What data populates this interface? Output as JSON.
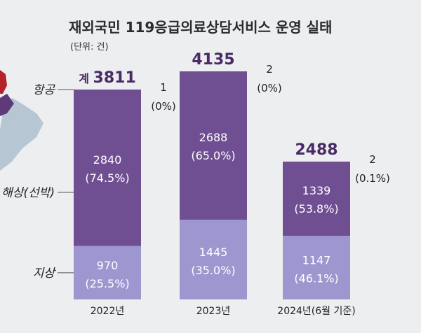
{
  "chart_data": {
    "type": "bar",
    "stacked": true,
    "title": "재외국민 119응급의료상담서비스 운영 실태",
    "subtitle": "(단위: 건)",
    "categories": [
      "2022년",
      "2023년",
      "2024년(6월 기준)"
    ],
    "series": [
      {
        "name": "지상",
        "values": [
          970,
          1445,
          1147
        ],
        "labels": [
          "970\n(25.5%)",
          "1445\n(35.0%)",
          "1147\n(46.1%)"
        ],
        "color": "#9e97cf"
      },
      {
        "name": "해상(선박)",
        "values": [
          2840,
          2688,
          1339
        ],
        "labels": [
          "2840\n(74.5%)",
          "2688\n(65.0%)",
          "1339\n(53.8%)"
        ],
        "color": "#6f4f92"
      },
      {
        "name": "항공",
        "values": [
          1,
          2,
          2
        ],
        "labels": [
          "1\n(0%)",
          "2\n(0%)",
          "2\n(0.1%)"
        ],
        "color": "#6f4f92"
      }
    ],
    "totals": [
      3811,
      4135,
      2488
    ],
    "total_prefix": "계",
    "grid": false,
    "legend": "left"
  },
  "colors": {
    "background": "#eceef0",
    "title": "#2b2b2b",
    "total_text": "#4a2a66",
    "map_shape": "#b7c6d3",
    "map_accent": "#b4222a"
  }
}
